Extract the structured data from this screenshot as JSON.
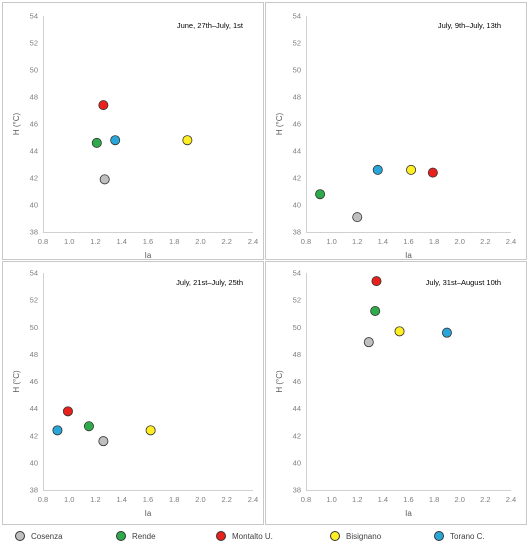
{
  "chart_data": [
    {
      "type": "scatter",
      "title": "June, 27th–July, 1st",
      "xlabel": "Ia",
      "ylabel": "H (°C)",
      "xlim": [
        0.8,
        2.4
      ],
      "ylim": [
        38,
        54
      ],
      "xticks": [
        "0.8",
        "1.0",
        "1.2",
        "1.4",
        "1.6",
        "1.8",
        "2.0",
        "2.2",
        "2.4"
      ],
      "yticks": [
        "38",
        "40",
        "42",
        "44",
        "46",
        "48",
        "50",
        "52",
        "54"
      ],
      "grid": false,
      "points": [
        {
          "series": "Cosenza",
          "x": 1.27,
          "y": 41.9
        },
        {
          "series": "Rende",
          "x": 1.21,
          "y": 44.6
        },
        {
          "series": "Montalto U.",
          "x": 1.26,
          "y": 47.4
        },
        {
          "series": "Bisignano",
          "x": 1.9,
          "y": 44.8
        },
        {
          "series": "Torano C.",
          "x": 1.35,
          "y": 44.8
        }
      ]
    },
    {
      "type": "scatter",
      "title": "July, 9th–July, 13th",
      "xlabel": "Ia",
      "ylabel": "H (°C)",
      "xlim": [
        0.8,
        2.4
      ],
      "ylim": [
        38,
        54
      ],
      "xticks": [
        "0.8",
        "1.0",
        "1.2",
        "1.4",
        "1.6",
        "1.8",
        "2.0",
        "2.2",
        "2.4"
      ],
      "yticks": [
        "38",
        "40",
        "42",
        "44",
        "46",
        "48",
        "50",
        "52",
        "54"
      ],
      "grid": false,
      "points": [
        {
          "series": "Cosenza",
          "x": 1.2,
          "y": 39.1
        },
        {
          "series": "Rende",
          "x": 0.91,
          "y": 40.8
        },
        {
          "series": "Montalto U.",
          "x": 1.79,
          "y": 42.4
        },
        {
          "series": "Bisignano",
          "x": 1.62,
          "y": 42.6
        },
        {
          "series": "Torano C.",
          "x": 1.36,
          "y": 42.6
        }
      ]
    },
    {
      "type": "scatter",
      "title": "July, 21st–July, 25th",
      "xlabel": "Ia",
      "ylabel": "H (°C)",
      "xlim": [
        0.8,
        2.4
      ],
      "ylim": [
        38,
        54
      ],
      "xticks": [
        "0.8",
        "1.0",
        "1.2",
        "1.4",
        "1.6",
        "1.8",
        "2.0",
        "2.2",
        "2.4"
      ],
      "yticks": [
        "38",
        "40",
        "42",
        "44",
        "46",
        "48",
        "50",
        "52",
        "54"
      ],
      "grid": false,
      "points": [
        {
          "series": "Cosenza",
          "x": 1.26,
          "y": 41.6
        },
        {
          "series": "Rende",
          "x": 1.15,
          "y": 42.7
        },
        {
          "series": "Montalto U.",
          "x": 0.99,
          "y": 43.8
        },
        {
          "series": "Bisignano",
          "x": 1.62,
          "y": 42.4
        },
        {
          "series": "Torano C.",
          "x": 0.91,
          "y": 42.4
        }
      ]
    },
    {
      "type": "scatter",
      "title": "July, 31st–August 10th",
      "xlabel": "Ia",
      "ylabel": "H (°C)",
      "xlim": [
        0.8,
        2.4
      ],
      "ylim": [
        38,
        54
      ],
      "xticks": [
        "0.8",
        "1.0",
        "1.2",
        "1.4",
        "1.6",
        "1.8",
        "2.0",
        "2.2",
        "2.4"
      ],
      "yticks": [
        "38",
        "40",
        "42",
        "44",
        "46",
        "48",
        "50",
        "52",
        "54"
      ],
      "grid": false,
      "points": [
        {
          "series": "Cosenza",
          "x": 1.29,
          "y": 48.9
        },
        {
          "series": "Rende",
          "x": 1.34,
          "y": 51.2
        },
        {
          "series": "Montalto U.",
          "x": 1.35,
          "y": 53.4
        },
        {
          "series": "Bisignano",
          "x": 1.53,
          "y": 49.7
        },
        {
          "series": "Torano C.",
          "x": 1.9,
          "y": 49.6
        }
      ]
    }
  ],
  "legend": {
    "placement": "bottom",
    "items": [
      {
        "label": "Cosenza",
        "color": "#bfbfbf"
      },
      {
        "label": "Rende",
        "color": "#2eaa4a"
      },
      {
        "label": "Montalto U.",
        "color": "#e8211c"
      },
      {
        "label": "Bisignano",
        "color": "#ffee22"
      },
      {
        "label": "Torano C.",
        "color": "#29a6d9"
      }
    ]
  }
}
